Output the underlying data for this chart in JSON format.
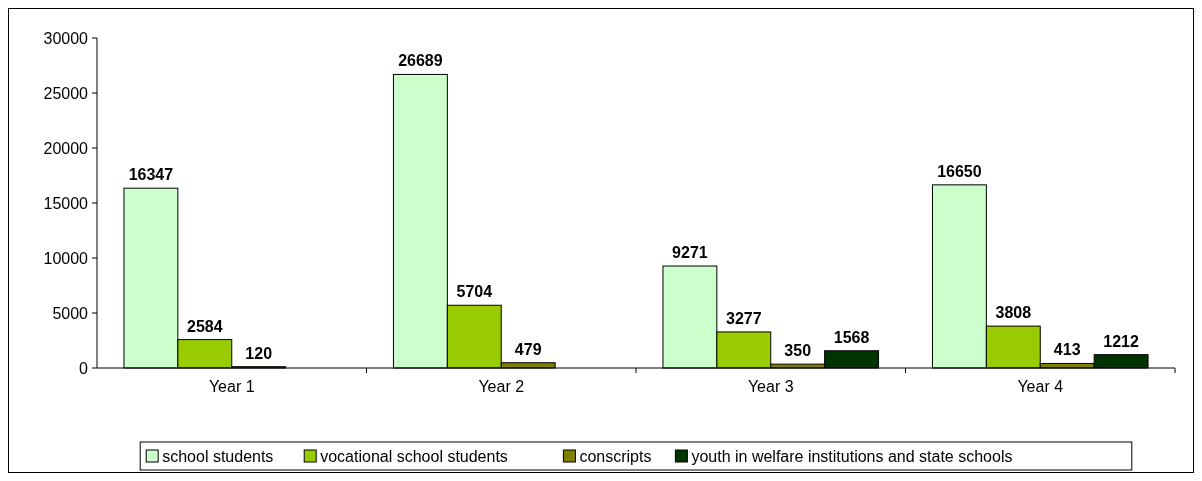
{
  "chart_data": {
    "type": "bar",
    "categories": [
      "Year 1",
      "Year 2",
      "Year 3",
      "Year 4"
    ],
    "series": [
      {
        "name": "school students",
        "color": "#ccffcc",
        "values": [
          16347,
          26689,
          9271,
          16650
        ]
      },
      {
        "name": "vocational school students",
        "color": "#99cc00",
        "values": [
          2584,
          5704,
          3277,
          3808
        ]
      },
      {
        "name": "conscripts",
        "color": "#808000",
        "values": [
          120,
          479,
          350,
          413
        ]
      },
      {
        "name": "youth in welfare institutions and state schools",
        "color": "#003300",
        "values": [
          null,
          null,
          1568,
          1212
        ]
      }
    ],
    "ylim": [
      0,
      30000
    ],
    "yticks": [
      0,
      5000,
      10000,
      15000,
      20000,
      25000,
      30000
    ],
    "grid": false,
    "legend": "bottom",
    "data_labels": true
  }
}
